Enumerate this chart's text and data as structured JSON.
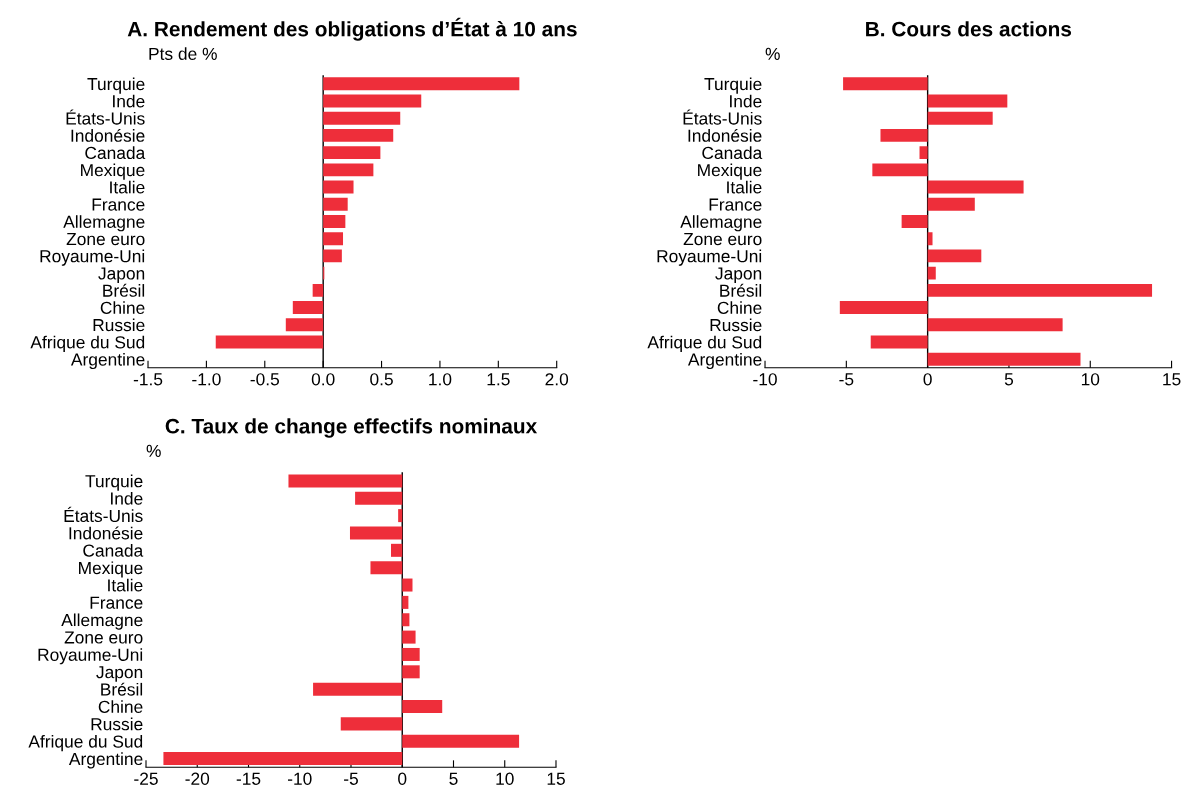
{
  "chart_data": [
    {
      "type": "bar",
      "orientation": "horizontal",
      "title": "A. Rendement des obligations d’État à 10 ans",
      "ylabel": "Pts de %",
      "categories": [
        "Turquie",
        "Inde",
        "États-Unis",
        "Indonésie",
        "Canada",
        "Mexique",
        "Italie",
        "France",
        "Allemagne",
        "Zone euro",
        "Royaume-Uni",
        "Japon",
        "Brésil",
        "Chine",
        "Russie",
        "Afrique du Sud",
        "Argentine"
      ],
      "values": [
        1.68,
        0.84,
        0.66,
        0.6,
        0.49,
        0.43,
        0.26,
        0.21,
        0.19,
        0.17,
        0.16,
        0.01,
        -0.09,
        -0.26,
        -0.32,
        -0.92,
        null
      ],
      "color": "#ee2e3a",
      "xlim": [
        -1.5,
        2.0
      ],
      "xticks": [
        {
          "value": -1.5,
          "label": "-1.5"
        },
        {
          "value": -1.0,
          "label": "-1.0"
        },
        {
          "value": -0.5,
          "label": "-0.5"
        },
        {
          "value": 0,
          "label": "0.0"
        },
        {
          "value": 0.5,
          "label": "0.5"
        },
        {
          "value": 1.0,
          "label": "1.0"
        },
        {
          "value": 1.5,
          "label": "1.5"
        },
        {
          "value": 2.0,
          "label": "2.0"
        }
      ],
      "ref_lines": [
        {
          "axis": "x",
          "value": 0,
          "color": "#000000"
        }
      ]
    },
    {
      "type": "bar",
      "orientation": "horizontal",
      "title": "B. Cours des actions",
      "ylabel": "%",
      "categories": [
        "Turquie",
        "Inde",
        "États-Unis",
        "Indonésie",
        "Canada",
        "Mexique",
        "Italie",
        "France",
        "Allemagne",
        "Zone euro",
        "Royaume-Uni",
        "Japon",
        "Brésil",
        "Chine",
        "Russie",
        "Afrique du Sud",
        "Argentine"
      ],
      "values": [
        -5.2,
        4.9,
        4.0,
        -2.9,
        -0.5,
        -3.4,
        5.9,
        2.9,
        -1.6,
        0.3,
        3.3,
        0.5,
        13.8,
        -5.4,
        8.3,
        -3.5,
        9.4
      ],
      "color": "#ee2e3a",
      "xlim": [
        -10,
        15
      ],
      "xticks": [
        -10,
        -5,
        0,
        5,
        10,
        15
      ],
      "ref_lines": [
        {
          "axis": "x",
          "value": 0,
          "color": "#000000"
        }
      ]
    },
    {
      "type": "bar",
      "orientation": "horizontal",
      "title": "C. Taux de change effectifs nominaux",
      "ylabel": "%",
      "categories": [
        "Turquie",
        "Inde",
        "États-Unis",
        "Indonésie",
        "Canada",
        "Mexique",
        "Italie",
        "France",
        "Allemagne",
        "Zone euro",
        "Royaume-Uni",
        "Japon",
        "Brésil",
        "Chine",
        "Russie",
        "Afrique du Sud",
        "Argentine"
      ],
      "values": [
        -11.1,
        -4.6,
        -0.4,
        -5.1,
        -1.1,
        -3.1,
        1.0,
        0.6,
        0.7,
        1.3,
        1.7,
        1.7,
        -8.7,
        3.9,
        -6.0,
        11.4,
        -23.3
      ],
      "color": "#ee2e3a",
      "xlim": [
        -25,
        15
      ],
      "xticks": [
        -25,
        -20,
        -15,
        -10,
        -5,
        0,
        5,
        10,
        15
      ],
      "ref_lines": [
        {
          "axis": "x",
          "value": 0,
          "color": "#000000"
        }
      ]
    }
  ]
}
